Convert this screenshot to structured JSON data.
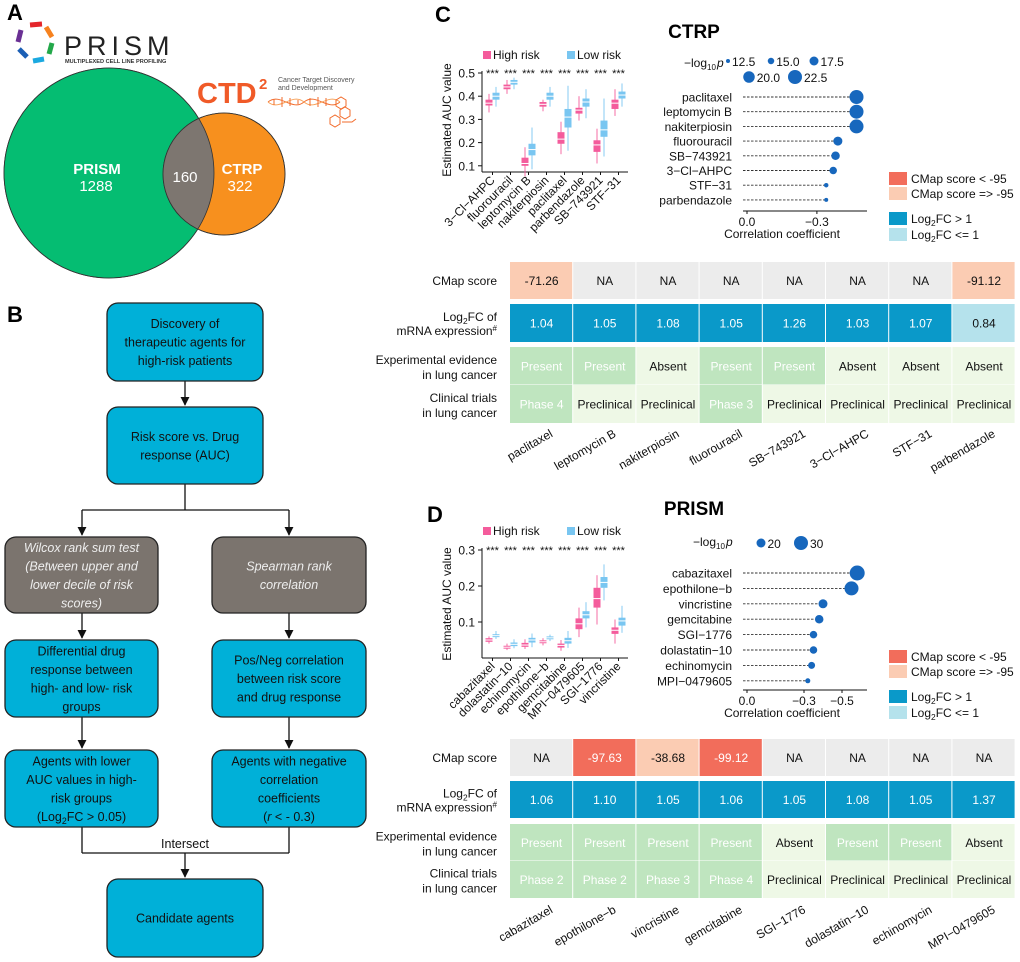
{
  "panel_labels": [
    "A",
    "B",
    "C",
    "D"
  ],
  "venn": {
    "prism_logo": {
      "name": "PRISM",
      "tagline": "MULTIPLEXED CELL LINE PROFILING"
    },
    "ctd2_logo": {
      "name": "CTD",
      "superscript": "2",
      "tagline_1": "Cancer Target Discovery",
      "tagline_2": "and Development"
    },
    "sets": [
      {
        "label": "PRISM",
        "count": "1288",
        "color": "#05bd72"
      },
      {
        "label": "CTRP",
        "count": "322",
        "color": "#f7901e"
      }
    ],
    "overlap": {
      "count": "160",
      "color": "#7d7670"
    }
  },
  "flowchart": {
    "colors": {
      "process": "#00b0d8",
      "method": "#7b746e"
    },
    "nodes": [
      {
        "kind": "process",
        "lines": [
          "Discovery of",
          "therapeutic agents for",
          "high-risk patients"
        ]
      },
      {
        "kind": "process",
        "lines": [
          "Risk score vs. Drug",
          "response (AUC)"
        ]
      },
      {
        "kind": "method",
        "lines": [
          "Wilcox rank sum test",
          "(Between upper and",
          "lower decile of risk",
          "scores)"
        ]
      },
      {
        "kind": "method",
        "lines": [
          "Spearman rank",
          "correlation"
        ]
      },
      {
        "kind": "process",
        "lines": [
          "Differential drug",
          "response between",
          "high- and low- risk",
          "groups"
        ]
      },
      {
        "kind": "process",
        "lines": [
          "Pos/Neg correlation",
          "between risk score",
          "and drug response"
        ]
      },
      {
        "kind": "process",
        "lines": [
          "Agents with lower",
          "AUC values in high-",
          "risk groups",
          {
            "pre": "(Log",
            "sub": "2",
            "post": "FC > 0.05)"
          }
        ]
      },
      {
        "kind": "process",
        "lines": [
          "Agents with negative",
          "correlation",
          "coefficients",
          {
            "pre": "(",
            "italic": "r",
            "post": " < - 0.3)"
          }
        ]
      },
      {
        "kind": "process",
        "lines": [
          "Candidate agents"
        ]
      }
    ],
    "intersect_label": "Intersect"
  },
  "chart_data": [
    {
      "panel": "C",
      "type": "box",
      "title": "CTRP",
      "ylabel": "Estimated AUC value",
      "ylim": [
        0.07,
        0.5
      ],
      "yticks": [
        "0.1",
        "0.2",
        "0.3",
        "0.4",
        "0.5"
      ],
      "categories": [
        "3−Cl−AHPC",
        "fluorouracil",
        "leptomycin B",
        "nakiterpiosin",
        "paclitaxel",
        "parbendazole",
        "SB−743921",
        "STF−31"
      ],
      "significance": [
        "***",
        "***",
        "***",
        "***",
        "***",
        "***",
        "***",
        "***"
      ],
      "series": [
        {
          "name": "High risk",
          "color": "#f45c9c",
          "boxes": [
            {
              "min": 0.33,
              "q1": 0.36,
              "median": 0.37,
              "q3": 0.385,
              "max": 0.41
            },
            {
              "min": 0.41,
              "q1": 0.43,
              "median": 0.44,
              "q3": 0.45,
              "max": 0.47
            },
            {
              "min": 0.055,
              "q1": 0.1,
              "median": 0.11,
              "q3": 0.135,
              "max": 0.18
            },
            {
              "min": 0.335,
              "q1": 0.355,
              "median": 0.365,
              "q3": 0.375,
              "max": 0.385
            },
            {
              "min": 0.15,
              "q1": 0.195,
              "median": 0.215,
              "q3": 0.245,
              "max": 0.29
            },
            {
              "min": 0.295,
              "q1": 0.325,
              "median": 0.34,
              "q3": 0.35,
              "max": 0.4
            },
            {
              "min": 0.11,
              "q1": 0.16,
              "median": 0.19,
              "q3": 0.21,
              "max": 0.26
            },
            {
              "min": 0.315,
              "q1": 0.345,
              "median": 0.37,
              "q3": 0.385,
              "max": 0.43
            }
          ]
        },
        {
          "name": "Low risk",
          "color": "#79c6f1",
          "boxes": [
            {
              "min": 0.355,
              "q1": 0.385,
              "median": 0.4,
              "q3": 0.415,
              "max": 0.44
            },
            {
              "min": 0.43,
              "q1": 0.45,
              "median": 0.46,
              "q3": 0.47,
              "max": 0.48
            },
            {
              "min": 0.085,
              "q1": 0.145,
              "median": 0.17,
              "q3": 0.195,
              "max": 0.265
            },
            {
              "min": 0.355,
              "q1": 0.385,
              "median": 0.4,
              "q3": 0.415,
              "max": 0.44
            },
            {
              "min": 0.165,
              "q1": 0.265,
              "median": 0.31,
              "q3": 0.345,
              "max": 0.445
            },
            {
              "min": 0.305,
              "q1": 0.355,
              "median": 0.375,
              "q3": 0.39,
              "max": 0.43
            },
            {
              "min": 0.14,
              "q1": 0.225,
              "median": 0.255,
              "q3": 0.295,
              "max": 0.39
            },
            {
              "min": 0.355,
              "q1": 0.39,
              "median": 0.405,
              "q3": 0.42,
              "max": 0.455
            }
          ]
        }
      ]
    },
    {
      "panel": "C",
      "type": "scatter",
      "subtype": "lollipop",
      "xlabel": "Correlation coefficient",
      "xticks": [
        "0.0",
        "−0.3"
      ],
      "size_title": {
        "pre": "−log",
        "sub": "10",
        "post": "p"
      },
      "size_legend": [
        "12.5",
        "15.0",
        "17.5",
        "20.0",
        "22.5"
      ],
      "color": "#1767bd",
      "drugs": [
        "paclitaxel",
        "leptomycin B",
        "nakiterpiosin",
        "fluorouracil",
        "SB−743921",
        "3−Cl−AHPC",
        "STF−31",
        "parbendazole"
      ],
      "correlation": [
        -0.47,
        -0.47,
        -0.47,
        -0.39,
        -0.38,
        -0.37,
        -0.34,
        -0.34
      ],
      "neg_log10_p": [
        22.5,
        22.5,
        22.5,
        17.5,
        17.0,
        16.0,
        13.0,
        12.5
      ]
    },
    {
      "panel": "C",
      "type": "table",
      "legend": [
        {
          "label": "CMap score < -95",
          "color": "#f26d5b"
        },
        {
          "label": "CMap score => -95",
          "color": "#fbccb3"
        },
        {
          "pre": "Log",
          "sub": "2",
          "post": "FC > 1",
          "color": "#0a99c9"
        },
        {
          "pre": "Log",
          "sub": "2",
          "post": "FC <= 1",
          "color": "#b5e2ec"
        }
      ],
      "row_labels": {
        "cmap": "CMap score",
        "log2fc": {
          "pre": "Log",
          "sub": "2",
          "post": "FC of",
          "line2": "mRNA expression",
          "mark": "#"
        },
        "evidence": [
          "Experimental evidence",
          "in lung cancer"
        ],
        "trials": [
          "Clinical trials",
          "in lung cancer"
        ]
      },
      "columns": [
        "paclitaxel",
        "leptomycin B",
        "nakiterpiosin",
        "fluorouracil",
        "SB−743921",
        "3−Cl−AHPC",
        "STF−31",
        "parbendazole"
      ],
      "cmap": [
        "-71.26",
        "NA",
        "NA",
        "NA",
        "NA",
        "NA",
        "NA",
        "-91.12"
      ],
      "log2fc": [
        "1.04",
        "1.05",
        "1.08",
        "1.05",
        "1.26",
        "1.03",
        "1.07",
        "0.84"
      ],
      "evidence": [
        "Present",
        "Present",
        "Absent",
        "Present",
        "Present",
        "Absent",
        "Absent",
        "Absent"
      ],
      "trials": [
        "Phase 4",
        "Preclinical",
        "Preclinical",
        "Phase 3",
        "Preclinical",
        "Preclinical",
        "Preclinical",
        "Preclinical"
      ],
      "colors": {
        "na": "#ececec",
        "positive_bg": "#bfe5bf",
        "negative_bg": "#eef8e6"
      }
    },
    {
      "panel": "D",
      "type": "box",
      "title": "PRISM",
      "ylabel": "Estimated AUC value",
      "ylim": [
        0,
        0.3
      ],
      "yticks": [
        "0.1",
        "0.2",
        "0.3"
      ],
      "categories": [
        "cabazitaxel",
        "dolastatin−10",
        "echinomycin",
        "epothilone−b",
        "gemcitabine",
        "MPI−0479605",
        "SGI−1776",
        "vincristine"
      ],
      "significance": [
        "***",
        "***",
        "***",
        "***",
        "***",
        "***",
        "***",
        "***"
      ],
      "series": [
        {
          "name": "High risk",
          "color": "#f45c9c",
          "boxes": [
            {
              "min": 0.04,
              "q1": 0.045,
              "median": 0.05,
              "q3": 0.055,
              "max": 0.06
            },
            {
              "min": 0.022,
              "q1": 0.026,
              "median": 0.03,
              "q3": 0.034,
              "max": 0.04
            },
            {
              "min": 0.025,
              "q1": 0.031,
              "median": 0.036,
              "q3": 0.042,
              "max": 0.052
            },
            {
              "min": 0.035,
              "q1": 0.041,
              "median": 0.045,
              "q3": 0.049,
              "max": 0.055
            },
            {
              "min": 0.02,
              "q1": 0.029,
              "median": 0.035,
              "q3": 0.04,
              "max": 0.05
            },
            {
              "min": 0.058,
              "q1": 0.08,
              "median": 0.095,
              "q3": 0.11,
              "max": 0.14
            },
            {
              "min": 0.093,
              "q1": 0.14,
              "median": 0.165,
              "q3": 0.195,
              "max": 0.23
            },
            {
              "min": 0.04,
              "q1": 0.067,
              "median": 0.077,
              "q3": 0.085,
              "max": 0.107
            }
          ]
        },
        {
          "name": "Low risk",
          "color": "#79c6f1",
          "boxes": [
            {
              "min": 0.053,
              "q1": 0.058,
              "median": 0.062,
              "q3": 0.066,
              "max": 0.075
            },
            {
              "min": 0.027,
              "q1": 0.033,
              "median": 0.038,
              "q3": 0.043,
              "max": 0.052
            },
            {
              "min": 0.03,
              "q1": 0.043,
              "median": 0.05,
              "q3": 0.056,
              "max": 0.068
            },
            {
              "min": 0.047,
              "q1": 0.052,
              "median": 0.056,
              "q3": 0.06,
              "max": 0.065
            },
            {
              "min": 0.028,
              "q1": 0.04,
              "median": 0.048,
              "q3": 0.056,
              "max": 0.075
            },
            {
              "min": 0.085,
              "q1": 0.11,
              "median": 0.12,
              "q3": 0.13,
              "max": 0.155
            },
            {
              "min": 0.16,
              "q1": 0.195,
              "median": 0.21,
              "q3": 0.225,
              "max": 0.26
            },
            {
              "min": 0.07,
              "q1": 0.09,
              "median": 0.103,
              "q3": 0.112,
              "max": 0.145
            }
          ]
        }
      ]
    },
    {
      "panel": "D",
      "type": "scatter",
      "subtype": "lollipop",
      "xlabel": "Correlation coefficient",
      "xticks": [
        "0.0",
        "−0.3",
        "−0.5"
      ],
      "size_title": {
        "pre": "−log",
        "sub": "10",
        "post": "p"
      },
      "size_legend": [
        "20",
        "30"
      ],
      "color": "#1767bd",
      "drugs": [
        "cabazitaxel",
        "epothilone−b",
        "vincristine",
        "gemcitabine",
        "SGI−1776",
        "dolastatin−10",
        "echinomycin",
        "MPI−0479605"
      ],
      "correlation": [
        -0.58,
        -0.55,
        -0.4,
        -0.38,
        -0.35,
        -0.35,
        -0.34,
        -0.32
      ],
      "neg_log10_p": [
        32,
        30,
        20,
        19,
        17,
        17,
        16,
        12
      ]
    },
    {
      "panel": "D",
      "type": "table",
      "legend": [
        {
          "label": "CMap score < -95",
          "color": "#f26d5b"
        },
        {
          "label": "CMap score => -95",
          "color": "#fbccb3"
        },
        {
          "pre": "Log",
          "sub": "2",
          "post": "FC > 1",
          "color": "#0a99c9"
        },
        {
          "pre": "Log",
          "sub": "2",
          "post": "FC <= 1",
          "color": "#b5e2ec"
        }
      ],
      "row_labels": {
        "cmap": "CMap score",
        "log2fc": {
          "pre": "Log",
          "sub": "2",
          "post": "FC of",
          "line2": "mRNA expression",
          "mark": "#"
        },
        "evidence": [
          "Experimental evidence",
          "in lung cancer"
        ],
        "trials": [
          "Clinical trials",
          "in lung cancer"
        ]
      },
      "columns": [
        "cabazitaxel",
        "epothilone−b",
        "vincristine",
        "gemcitabine",
        "SGI−1776",
        "dolastatin−10",
        "echinomycin",
        "MPI−0479605"
      ],
      "cmap": [
        "NA",
        "-97.63",
        "-38.68",
        "-99.12",
        "NA",
        "NA",
        "NA",
        "NA"
      ],
      "log2fc": [
        "1.06",
        "1.10",
        "1.05",
        "1.06",
        "1.05",
        "1.08",
        "1.05",
        "1.37"
      ],
      "evidence": [
        "Present",
        "Present",
        "Present",
        "Present",
        "Absent",
        "Present",
        "Present",
        "Absent"
      ],
      "trials": [
        "Phase 2",
        "Phase 2",
        "Phase 3",
        "Phase 4",
        "Preclinical",
        "Preclinical",
        "Preclinical",
        "Preclinical"
      ],
      "colors": {
        "na": "#ececec",
        "positive_bg": "#bfe5bf",
        "negative_bg": "#eef8e6"
      }
    }
  ]
}
